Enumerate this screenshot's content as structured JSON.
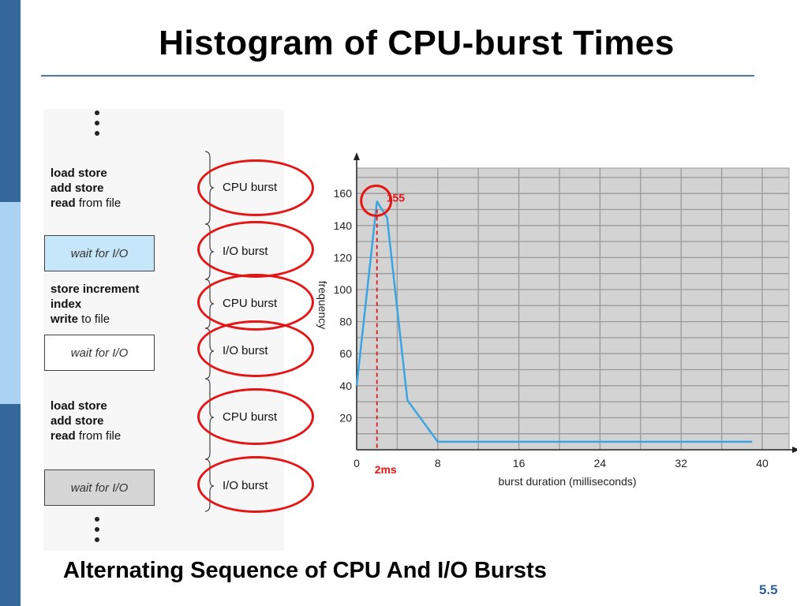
{
  "slide": {
    "title": "Histogram of CPU-burst Times",
    "caption": "Alternating Sequence of CPU And I/O Bursts",
    "page_number": "5.5"
  },
  "sequence": {
    "blocks": [
      {
        "lines": [
          {
            "bold": "load store",
            "rest": ""
          },
          {
            "bold": "add store",
            "rest": ""
          },
          {
            "bold": "read",
            "rest": " from file"
          }
        ]
      },
      {
        "wait": "wait for I/O"
      },
      {
        "lines": [
          {
            "bold": "store increment",
            "rest": ""
          },
          {
            "bold": "index",
            "rest": ""
          },
          {
            "bold": "write",
            "rest": " to file"
          }
        ]
      },
      {
        "wait": "wait for I/O"
      },
      {
        "lines": [
          {
            "bold": "load store",
            "rest": ""
          },
          {
            "bold": "add store",
            "rest": ""
          },
          {
            "bold": "read",
            "rest": " from file"
          }
        ]
      },
      {
        "wait": "wait for I/O"
      }
    ],
    "bursts": [
      "CPU burst",
      "I/O burst",
      "CPU burst",
      "I/O burst",
      "CPU burst",
      "I/O burst"
    ],
    "highlight_color": "#e41515"
  },
  "chart_data": {
    "type": "line",
    "title": "",
    "xlabel": "burst duration (milliseconds)",
    "ylabel": "frequency",
    "x": [
      0,
      2,
      3,
      5,
      8,
      16,
      24,
      32,
      39
    ],
    "y": [
      40,
      155,
      145,
      31,
      5,
      5,
      5,
      5,
      5
    ],
    "xlim": [
      0,
      40
    ],
    "ylim": [
      0,
      170
    ],
    "xticks": [
      0,
      8,
      16,
      24,
      32,
      40
    ],
    "yticks": [
      20,
      40,
      60,
      80,
      100,
      120,
      140,
      160
    ],
    "grid": true,
    "line_color": "#3aa5e0",
    "plot_bg": "#d3d3d3",
    "annotations": [
      {
        "text": "155",
        "x": 2,
        "y": 155,
        "color": "#e41515"
      },
      {
        "text": "2ms",
        "x": 2,
        "y": 0,
        "color": "#e41515"
      }
    ]
  }
}
